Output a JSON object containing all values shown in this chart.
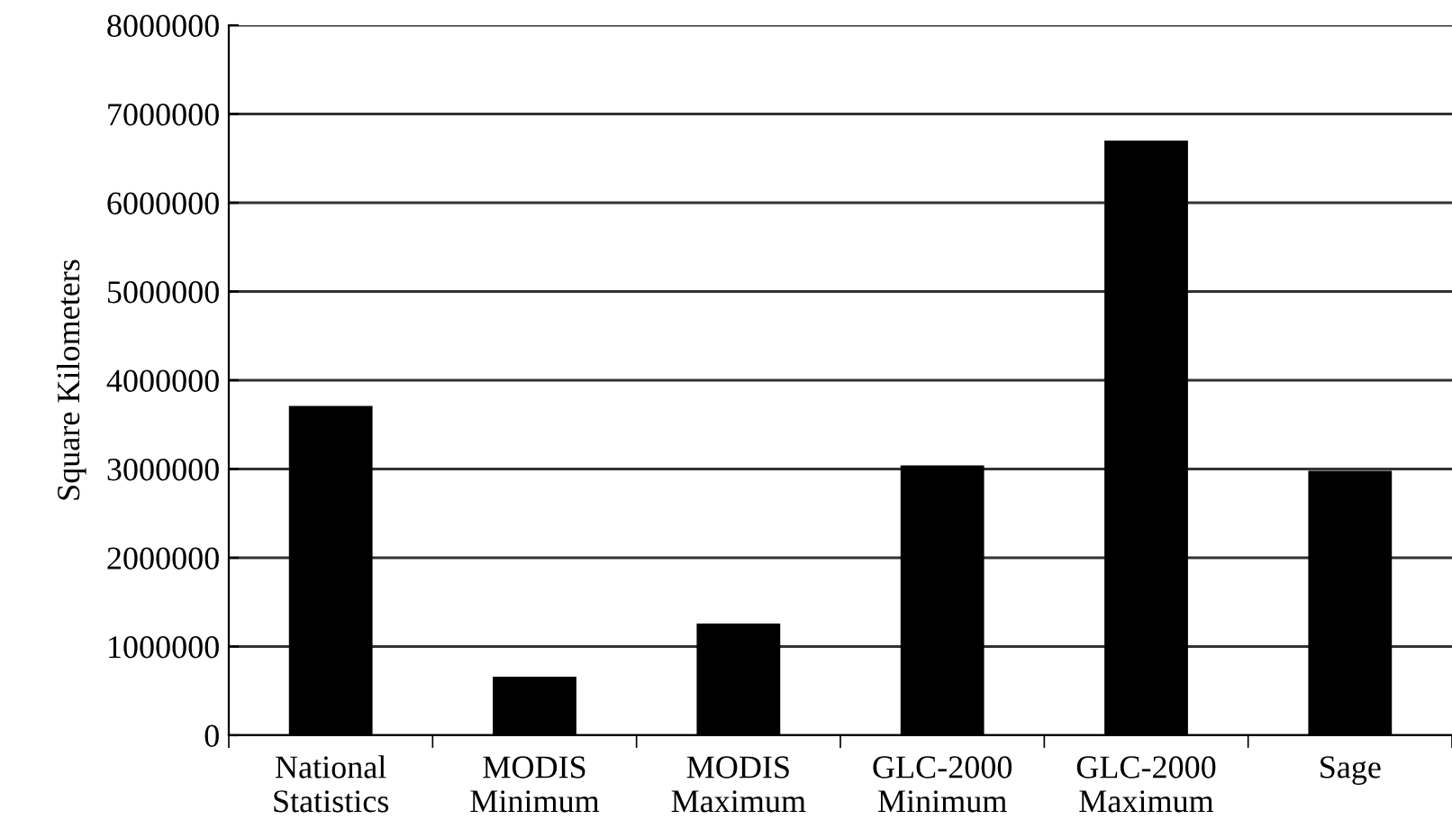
{
  "chart_data": {
    "type": "bar",
    "ylabel": "Square Kilometers",
    "categories": [
      "National\nStatistics",
      "MODIS\nMinimum",
      "MODIS\nMaximum",
      "GLC-2000\nMinimum",
      "GLC-2000\nMaximum",
      "Sage"
    ],
    "values": [
      3710000,
      660000,
      1260000,
      3040000,
      6700000,
      2980000
    ],
    "color": "#000000",
    "ylim": [
      0,
      8000000
    ],
    "yticks": [
      0,
      1000000,
      2000000,
      3000000,
      4000000,
      5000000,
      6000000,
      7000000,
      8000000
    ],
    "grid": "y",
    "legend": false
  }
}
